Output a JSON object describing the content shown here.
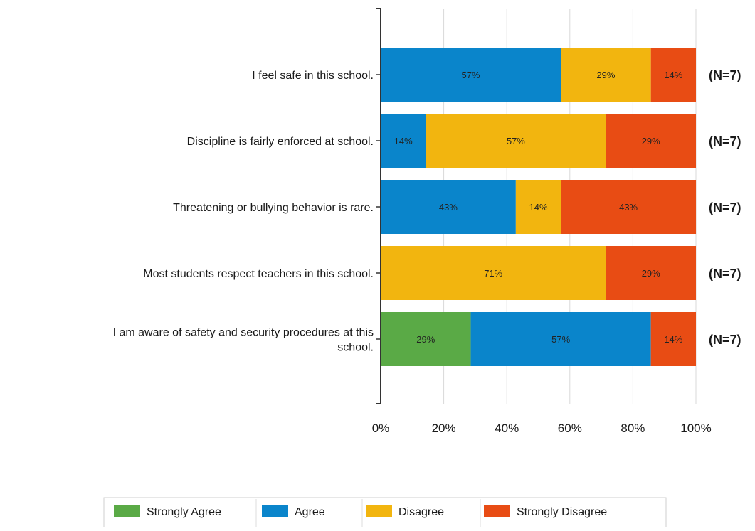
{
  "chart_data": {
    "type": "bar",
    "orientation": "horizontal",
    "stacked": true,
    "title": "",
    "xlabel": "",
    "ylabel": "",
    "xlim": [
      0,
      100
    ],
    "x_ticks": [
      "0%",
      "20%",
      "40%",
      "60%",
      "80%",
      "100%"
    ],
    "grid": true,
    "legend_position": "bottom",
    "categories": [
      [
        "I feel safe in this school."
      ],
      [
        "Discipline is fairly enforced at school."
      ],
      [
        "Threatening or bullying behavior is rare."
      ],
      [
        "Most students respect teachers in this school."
      ],
      [
        "I am aware of safety and security procedures at this",
        "school."
      ]
    ],
    "n_labels": [
      "(N=7)",
      "(N=7)",
      "(N=7)",
      "(N=7)",
      "(N=7)"
    ],
    "series": [
      {
        "name": "Strongly Agree",
        "color": "#5aaa46",
        "values": [
          0,
          0,
          0,
          0,
          28.57
        ],
        "labels": [
          "",
          "",
          "",
          "",
          "29%"
        ]
      },
      {
        "name": "Agree",
        "color": "#0a85cb",
        "values": [
          57.14,
          14.29,
          42.86,
          0,
          57.14
        ],
        "labels": [
          "57%",
          "14%",
          "43%",
          "",
          "57%"
        ]
      },
      {
        "name": "Disagree",
        "color": "#f2b50f",
        "values": [
          28.57,
          57.14,
          14.29,
          71.43,
          0
        ],
        "labels": [
          "29%",
          "57%",
          "14%",
          "71%",
          ""
        ]
      },
      {
        "name": "Strongly Disagree",
        "color": "#e84c14",
        "values": [
          14.29,
          28.57,
          42.86,
          28.57,
          14.29
        ],
        "labels": [
          "14%",
          "29%",
          "43%",
          "29%",
          "14%"
        ]
      }
    ]
  }
}
